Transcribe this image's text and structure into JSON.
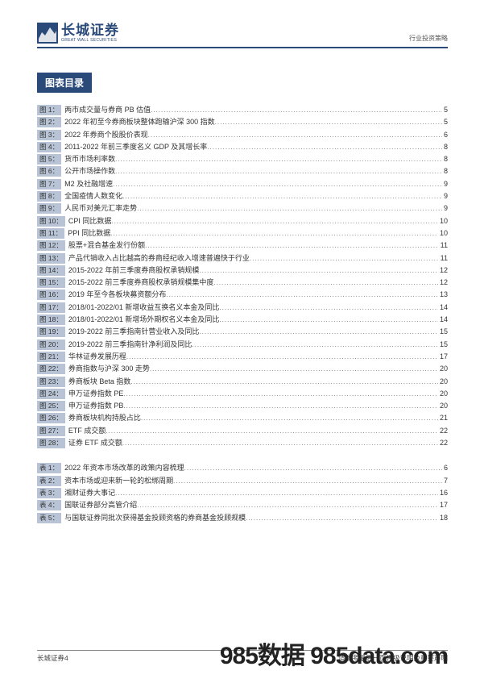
{
  "logo": {
    "cn": "长城证券",
    "en": "GREAT WALL SECURITIES"
  },
  "header_right": "行业投资策略",
  "section_title": "图表目录",
  "figures": [
    {
      "tag": "图 1：",
      "title": "两市成交量与券商 PB 估值",
      "page": "5"
    },
    {
      "tag": "图 2：",
      "title": "2022 年初至今券商板块整体跑输沪深 300 指数",
      "page": "5"
    },
    {
      "tag": "图 3：",
      "title": "2022 年券商个股股价表现",
      "page": "6"
    },
    {
      "tag": "图 4：",
      "title": "2011-2022 年前三季度名义 GDP 及其增长率",
      "page": "8"
    },
    {
      "tag": "图 5：",
      "title": "货币市场利率数",
      "page": "8"
    },
    {
      "tag": "图 6：",
      "title": "公开市场操作数",
      "page": "8"
    },
    {
      "tag": "图 7：",
      "title": "M2 及社融增速",
      "page": "9"
    },
    {
      "tag": "图 8：",
      "title": "全国疫情人数变化",
      "page": "9"
    },
    {
      "tag": "图 9：",
      "title": "人民币对美元汇率走势",
      "page": "9"
    },
    {
      "tag": "图 10：",
      "title": "CPI 同比数据",
      "page": "10"
    },
    {
      "tag": "图 11：",
      "title": "PPI 同比数据",
      "page": "10"
    },
    {
      "tag": "图 12：",
      "title": "股票+混合基金发行份额",
      "page": "11"
    },
    {
      "tag": "图 13：",
      "title": "产品代销收入占比越高的券商经纪收入增速普遍快于行业",
      "page": "11"
    },
    {
      "tag": "图 14：",
      "title": "2015-2022 年前三季度券商股权承销规模",
      "page": "12"
    },
    {
      "tag": "图 15：",
      "title": "2015-2022 前三季度券商股权承销规模集中度",
      "page": "12"
    },
    {
      "tag": "图 16：",
      "title": "2019 年至今各板块募资额分布",
      "page": "13"
    },
    {
      "tag": "图 17：",
      "title": "2018/01-2022/01 新增收益互换名义本金及同比",
      "page": "14"
    },
    {
      "tag": "图 18：",
      "title": "2018/01-2022/01 新增场外期权名义本金及同比",
      "page": "14"
    },
    {
      "tag": "图 19：",
      "title": "2019-2022 前三季指南针营业收入及同比",
      "page": "15"
    },
    {
      "tag": "图 20：",
      "title": "2019-2022 前三季指南针净利润及同比",
      "page": "15"
    },
    {
      "tag": "图 21：",
      "title": "华林证券发展历程",
      "page": "17"
    },
    {
      "tag": "图 22：",
      "title": "券商指数与沪深 300 走势",
      "page": "20"
    },
    {
      "tag": "图 23：",
      "title": "券商板块 Beta 指数",
      "page": "20"
    },
    {
      "tag": "图 24：",
      "title": "申万证券指数 PE",
      "page": "20"
    },
    {
      "tag": "图 25：",
      "title": "申万证券指数 PB",
      "page": "20"
    },
    {
      "tag": "图 26：",
      "title": "券商板块机构持股占比",
      "page": "21"
    },
    {
      "tag": "图 27：",
      "title": "ETF 成交额",
      "page": "22"
    },
    {
      "tag": "图 28：",
      "title": "证券 ETF 成交额",
      "page": "22"
    }
  ],
  "tables": [
    {
      "tag": "表 1：",
      "title": "2022 年资本市场改革的政策内容梳理",
      "page": "6"
    },
    {
      "tag": "表 2：",
      "title": "资本市场或迎来新一轮的松绑周期",
      "page": "7"
    },
    {
      "tag": "表 3：",
      "title": "湘财证券大事记",
      "page": "16"
    },
    {
      "tag": "表 4：",
      "title": "国联证券部分高管介绍",
      "page": "17"
    },
    {
      "tag": "表 5：",
      "title": "与国联证券同批次获得基金投顾资格的券商基金投顾规模",
      "page": "18"
    }
  ],
  "footer_left": "长城证券4",
  "footer_right": "请参考最后一页评级说明及重要声明",
  "watermark": "985数据 985data.com",
  "colors": {
    "brand": "#2a4a7a",
    "tag_bg": "#b8c4d6"
  }
}
